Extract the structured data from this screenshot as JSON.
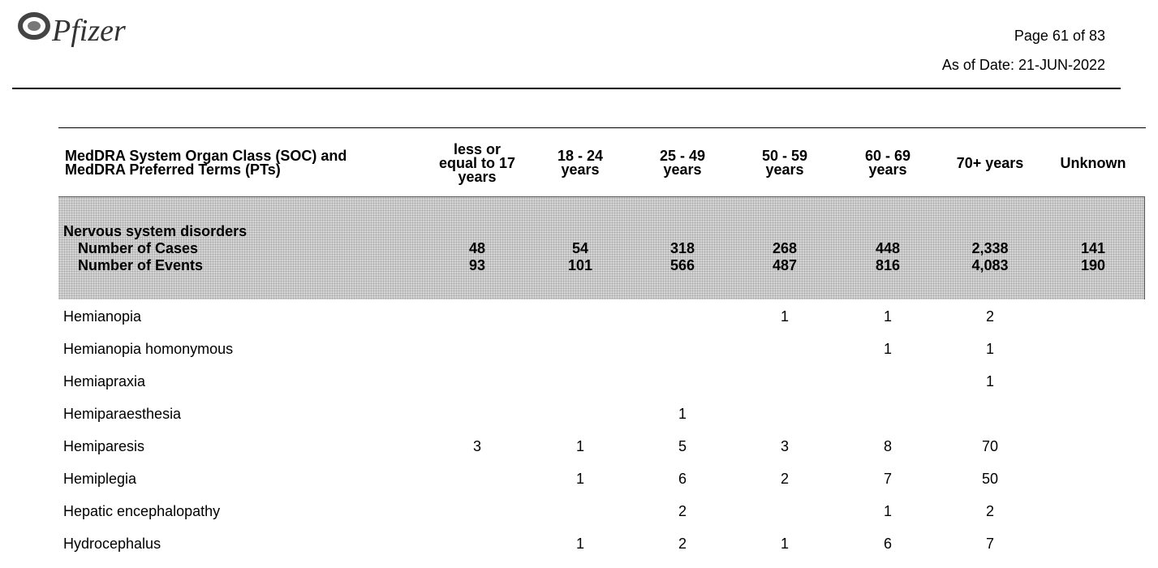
{
  "header": {
    "logo": "Pfizer",
    "page": "Page 61 of 83",
    "date": "As of Date: 21-JUN-2022"
  },
  "table": {
    "columns": [
      [
        "MedDRA System Organ Class (SOC) and",
        "MedDRA Preferred Terms (PTs)"
      ],
      [
        "less or",
        "equal to 17",
        "years"
      ],
      [
        "18 - 24",
        "years"
      ],
      [
        "25 - 49",
        "years"
      ],
      [
        "50 - 59",
        "years"
      ],
      [
        "60 - 69",
        "years"
      ],
      [
        "70+ years"
      ],
      [
        "Unknown"
      ]
    ],
    "section": {
      "title": "Nervous system disorders",
      "rows": [
        {
          "label": "Number of Cases",
          "values": [
            "48",
            "54",
            "318",
            "268",
            "448",
            "2,338",
            "141"
          ]
        },
        {
          "label": "Number of Events",
          "values": [
            "93",
            "101",
            "566",
            "487",
            "816",
            "4,083",
            "190"
          ]
        }
      ]
    },
    "rows": [
      {
        "term": "Hemianopia",
        "values": [
          null,
          null,
          null,
          "1",
          "1",
          "2",
          null
        ]
      },
      {
        "term": "Hemianopia homonymous",
        "values": [
          null,
          null,
          null,
          null,
          "1",
          "1",
          null
        ]
      },
      {
        "term": "Hemiapraxia",
        "values": [
          null,
          null,
          null,
          null,
          null,
          "1",
          null
        ]
      },
      {
        "term": "Hemiparaesthesia",
        "values": [
          null,
          null,
          "1",
          null,
          null,
          null,
          null
        ]
      },
      {
        "term": "Hemiparesis",
        "values": [
          "3",
          "1",
          "5",
          "3",
          "8",
          "70",
          null
        ]
      },
      {
        "term": "Hemiplegia",
        "values": [
          null,
          "1",
          "6",
          "2",
          "7",
          "50",
          null
        ]
      },
      {
        "term": "Hepatic encephalopathy",
        "values": [
          null,
          null,
          "2",
          null,
          "1",
          "2",
          null
        ]
      },
      {
        "term": "Hydrocephalus",
        "values": [
          null,
          "1",
          "2",
          "1",
          "6",
          "7",
          null
        ]
      }
    ]
  }
}
